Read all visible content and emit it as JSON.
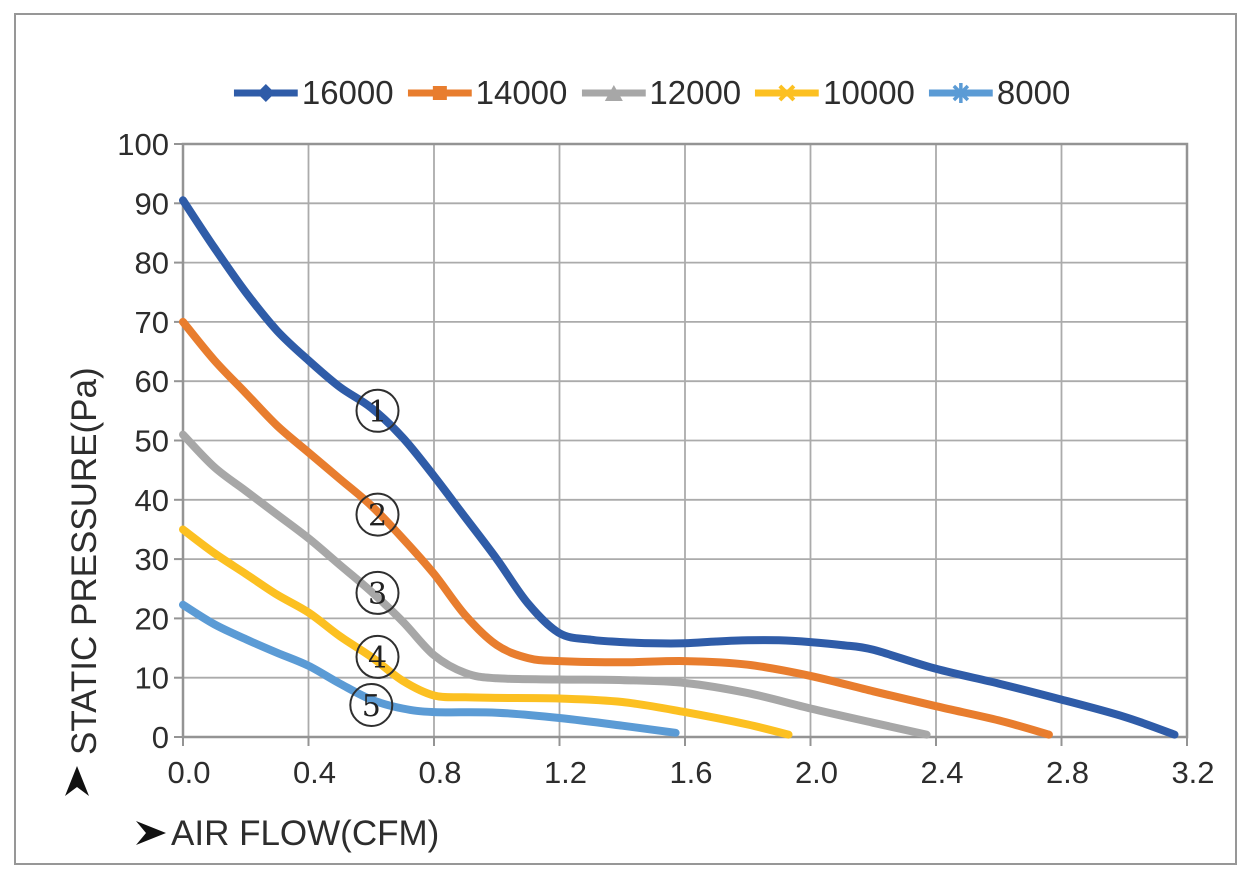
{
  "chart_data": {
    "type": "line",
    "title": "",
    "xlabel": "AIR FLOW(CFM)",
    "ylabel": "STATIC PRESSURE(Pa)",
    "xlim": [
      0,
      3.2
    ],
    "ylim": [
      0,
      100
    ],
    "x_ticks": [
      "0.0",
      "0.4",
      "0.8",
      "1.2",
      "1.6",
      "2.0",
      "2.4",
      "2.8",
      "3.2"
    ],
    "y_ticks": [
      "0",
      "10",
      "20",
      "30",
      "40",
      "50",
      "60",
      "70",
      "80",
      "90",
      "100"
    ],
    "grid": true,
    "legend_position": "top",
    "grid_color": "#ababab",
    "axis_color": "#949494",
    "text_color": "#2d2d2d",
    "series": [
      {
        "name": "16000",
        "color": "#2f5ca8",
        "marker": "diamond",
        "points": [
          [
            0,
            90.5
          ],
          [
            0.1,
            82.5
          ],
          [
            0.2,
            75
          ],
          [
            0.3,
            68.5
          ],
          [
            0.4,
            63.5
          ],
          [
            0.5,
            59
          ],
          [
            0.6,
            55.5
          ],
          [
            0.7,
            50.5
          ],
          [
            0.8,
            44
          ],
          [
            0.9,
            37
          ],
          [
            1.0,
            30
          ],
          [
            1.1,
            22.5
          ],
          [
            1.2,
            17.5
          ],
          [
            1.3,
            16.4
          ],
          [
            1.4,
            16
          ],
          [
            1.5,
            15.8
          ],
          [
            1.6,
            15.8
          ],
          [
            1.7,
            16.1
          ],
          [
            1.8,
            16.3
          ],
          [
            1.9,
            16.3
          ],
          [
            2.0,
            16
          ],
          [
            2.1,
            15.5
          ],
          [
            2.2,
            14.7
          ],
          [
            2.4,
            11.5
          ],
          [
            2.6,
            9
          ],
          [
            2.8,
            6.3
          ],
          [
            3.0,
            3.4
          ],
          [
            3.16,
            0.4
          ]
        ]
      },
      {
        "name": "14000",
        "color": "#e87d2e",
        "marker": "square",
        "points": [
          [
            0,
            70
          ],
          [
            0.1,
            63.5
          ],
          [
            0.2,
            58
          ],
          [
            0.3,
            52.5
          ],
          [
            0.4,
            48
          ],
          [
            0.5,
            43.5
          ],
          [
            0.6,
            39
          ],
          [
            0.7,
            33.5
          ],
          [
            0.8,
            27.5
          ],
          [
            0.9,
            20.5
          ],
          [
            1.0,
            15.5
          ],
          [
            1.1,
            13.3
          ],
          [
            1.2,
            12.8
          ],
          [
            1.4,
            12.6
          ],
          [
            1.6,
            12.8
          ],
          [
            1.8,
            12.2
          ],
          [
            2.0,
            10.3
          ],
          [
            2.2,
            7.7
          ],
          [
            2.4,
            5.2
          ],
          [
            2.6,
            2.8
          ],
          [
            2.76,
            0.4
          ]
        ]
      },
      {
        "name": "12000",
        "color": "#a7a7a7",
        "marker": "triangle",
        "points": [
          [
            0,
            51
          ],
          [
            0.1,
            45.5
          ],
          [
            0.2,
            41.5
          ],
          [
            0.3,
            37.5
          ],
          [
            0.4,
            33.5
          ],
          [
            0.5,
            29
          ],
          [
            0.6,
            24.5
          ],
          [
            0.7,
            19.5
          ],
          [
            0.8,
            13.8
          ],
          [
            0.9,
            10.8
          ],
          [
            1.0,
            9.9
          ],
          [
            1.2,
            9.7
          ],
          [
            1.4,
            9.6
          ],
          [
            1.6,
            9.1
          ],
          [
            1.8,
            7.4
          ],
          [
            2.0,
            4.8
          ],
          [
            2.2,
            2.4
          ],
          [
            2.37,
            0.4
          ]
        ]
      },
      {
        "name": "10000",
        "color": "#fcc021",
        "marker": "x",
        "points": [
          [
            0,
            35
          ],
          [
            0.1,
            31
          ],
          [
            0.2,
            27.5
          ],
          [
            0.3,
            24
          ],
          [
            0.4,
            21
          ],
          [
            0.5,
            17
          ],
          [
            0.6,
            13.5
          ],
          [
            0.7,
            9.5
          ],
          [
            0.8,
            7
          ],
          [
            0.9,
            6.7
          ],
          [
            1.0,
            6.6
          ],
          [
            1.2,
            6.5
          ],
          [
            1.4,
            5.9
          ],
          [
            1.6,
            4.2
          ],
          [
            1.8,
            2.1
          ],
          [
            1.93,
            0.4
          ]
        ]
      },
      {
        "name": "8000",
        "color": "#5b9bd5",
        "marker": "asterisk",
        "points": [
          [
            0,
            22.3
          ],
          [
            0.1,
            19
          ],
          [
            0.2,
            16.5
          ],
          [
            0.3,
            14.2
          ],
          [
            0.4,
            12
          ],
          [
            0.5,
            9
          ],
          [
            0.6,
            6.3
          ],
          [
            0.7,
            4.8
          ],
          [
            0.8,
            4.2
          ],
          [
            1.0,
            4.1
          ],
          [
            1.2,
            3.2
          ],
          [
            1.4,
            1.9
          ],
          [
            1.57,
            0.7
          ]
        ]
      }
    ],
    "annotations": [
      {
        "label": "1",
        "x": 0.62,
        "y": 55.0
      },
      {
        "label": "2",
        "x": 0.62,
        "y": 37.5
      },
      {
        "label": "3",
        "x": 0.62,
        "y": 24.3
      },
      {
        "label": "4",
        "x": 0.62,
        "y": 13.5
      },
      {
        "label": "5",
        "x": 0.6,
        "y": 5.4
      }
    ]
  }
}
